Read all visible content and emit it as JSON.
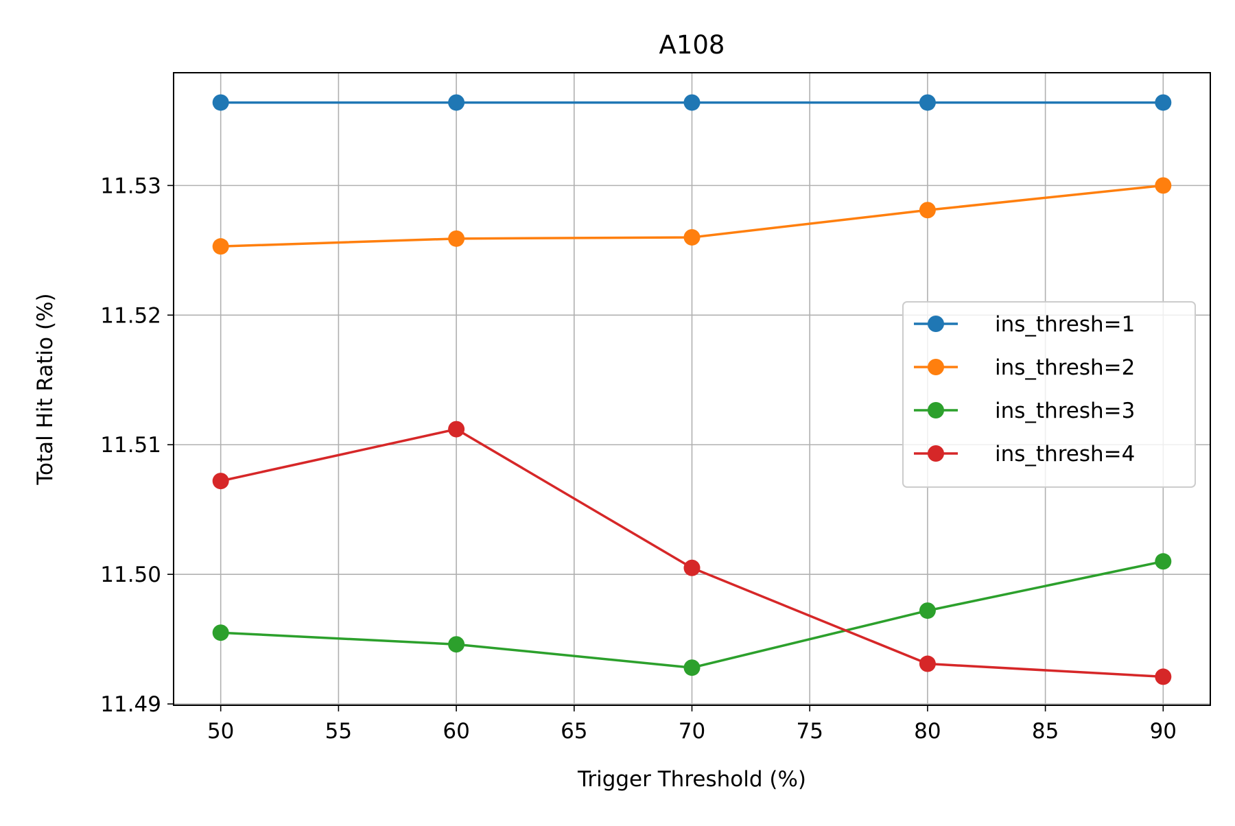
{
  "chart_data": {
    "type": "line",
    "title": "A108",
    "xlabel": "Trigger Threshold (%)",
    "ylabel": "Total Hit Ratio (%)",
    "x": [
      50,
      60,
      70,
      80,
      90
    ],
    "xlim": [
      48,
      92
    ],
    "ylim": [
      11.4899,
      11.5387
    ],
    "xticks": [
      50,
      55,
      60,
      65,
      70,
      75,
      80,
      85,
      90
    ],
    "xtick_labels": [
      "50",
      "55",
      "60",
      "65",
      "70",
      "75",
      "80",
      "85",
      "90"
    ],
    "yticks": [
      11.49,
      11.5,
      11.51,
      11.52,
      11.53
    ],
    "ytick_labels": [
      "11.49",
      "11.50",
      "11.51",
      "11.52",
      "11.53"
    ],
    "grid": true,
    "legend_position": "center-right",
    "series": [
      {
        "name": "ins_thresh=1",
        "color": "#1f77b4",
        "values": [
          11.5364,
          11.5364,
          11.5364,
          11.5364,
          11.5364
        ]
      },
      {
        "name": "ins_thresh=2",
        "color": "#ff7f0e",
        "values": [
          11.5253,
          11.5259,
          11.526,
          11.5281,
          11.53
        ]
      },
      {
        "name": "ins_thresh=3",
        "color": "#2ca02c",
        "values": [
          11.4955,
          11.4946,
          11.4928,
          11.4972,
          11.501
        ]
      },
      {
        "name": "ins_thresh=4",
        "color": "#d62728",
        "values": [
          11.5072,
          11.5112,
          11.5005,
          11.4931,
          11.4921
        ]
      }
    ]
  }
}
